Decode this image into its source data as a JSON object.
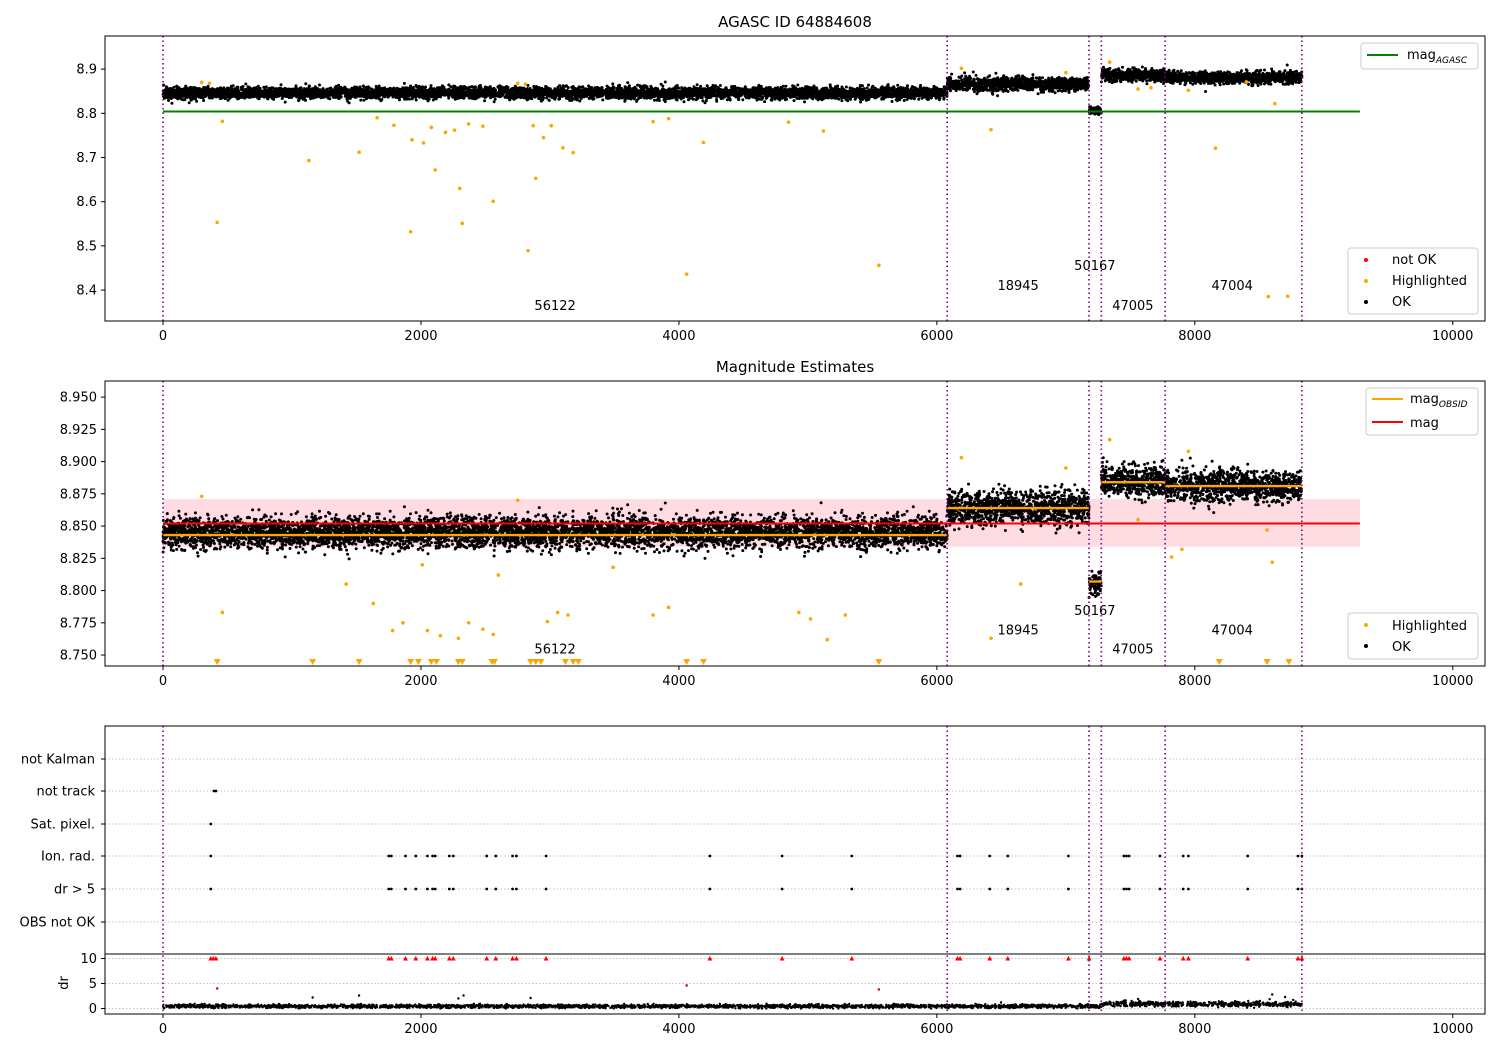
{
  "chart_data": [
    {
      "type": "scatter",
      "title": "AGASC ID 64884608",
      "xlim": [
        -450,
        10250
      ],
      "ylim": [
        8.33,
        8.975
      ],
      "x_ticks": [
        0,
        2000,
        4000,
        6000,
        8000,
        10000
      ],
      "y_ticks": [
        8.4,
        8.5,
        8.6,
        8.7,
        8.8,
        8.9
      ],
      "grid": false,
      "legend_upper": {
        "placement": "top-right",
        "entries": [
          {
            "label": "mag",
            "sub": "AGASC",
            "color": "#008000"
          }
        ]
      },
      "legend_lower": {
        "placement": "bottom-right",
        "entries": [
          {
            "label": "not OK",
            "color": "#ff0000"
          },
          {
            "label": "Highlighted",
            "color": "#ffa500"
          },
          {
            "label": "OK",
            "color": "#000000"
          }
        ]
      },
      "obsid_boundaries": [
        0,
        6080,
        7180,
        7275,
        7770,
        8830
      ],
      "obsid_labels": [
        {
          "text": "56122",
          "x": 3040,
          "y": 8.355
        },
        {
          "text": "18945",
          "x": 6630,
          "y": 8.4
        },
        {
          "text": "50167",
          "x": 7225,
          "y": 8.445
        },
        {
          "text": "47005",
          "x": 7520,
          "y": 8.355
        },
        {
          "text": "47004",
          "x": 8290,
          "y": 8.4
        }
      ],
      "mag_agasc": {
        "value": 8.804,
        "x": [
          0,
          9280
        ]
      },
      "ok_segments": [
        {
          "x": [
            0,
            6080
          ],
          "center": 8.846,
          "spread": 0.012
        },
        {
          "x": [
            6080,
            7180
          ],
          "center": 8.866,
          "spread": 0.014
        },
        {
          "x": [
            7180,
            7275
          ],
          "center": 8.806,
          "spread": 0.006
        },
        {
          "x": [
            7275,
            7770
          ],
          "center": 8.886,
          "spread": 0.012
        },
        {
          "x": [
            7770,
            8830
          ],
          "center": 8.881,
          "spread": 0.012
        }
      ],
      "highlighted_points": [
        [
          1130,
          8.693
        ],
        [
          1520,
          8.712
        ],
        [
          1660,
          8.79
        ],
        [
          1790,
          8.773
        ],
        [
          1930,
          8.74
        ],
        [
          2020,
          8.733
        ],
        [
          2080,
          8.768
        ],
        [
          2110,
          8.672
        ],
        [
          2190,
          8.757
        ],
        [
          2260,
          8.762
        ],
        [
          2300,
          8.63
        ],
        [
          2320,
          8.551
        ],
        [
          2370,
          8.776
        ],
        [
          2480,
          8.771
        ],
        [
          2560,
          8.601
        ],
        [
          2830,
          8.489
        ],
        [
          2870,
          8.772
        ],
        [
          2890,
          8.653
        ],
        [
          2950,
          8.745
        ],
        [
          3010,
          8.772
        ],
        [
          3100,
          8.722
        ],
        [
          3180,
          8.711
        ],
        [
          3800,
          8.781
        ],
        [
          3920,
          8.788
        ],
        [
          4060,
          8.436
        ],
        [
          4190,
          8.734
        ],
        [
          4850,
          8.78
        ],
        [
          5120,
          8.76
        ],
        [
          5550,
          8.456
        ],
        [
          6420,
          8.763
        ],
        [
          8160,
          8.721
        ],
        [
          8570,
          8.385
        ],
        [
          8720,
          8.386
        ],
        [
          420,
          8.553
        ],
        [
          1920,
          8.532
        ],
        [
          460,
          8.782
        ],
        [
          300,
          8.87
        ],
        [
          360,
          8.868
        ],
        [
          2750,
          8.868
        ],
        [
          2810,
          8.866
        ],
        [
          6190,
          8.902
        ],
        [
          7340,
          8.916
        ],
        [
          7560,
          8.855
        ],
        [
          7660,
          8.858
        ],
        [
          7950,
          8.852
        ],
        [
          8620,
          8.822
        ],
        [
          8400,
          8.871
        ],
        [
          7000,
          8.892
        ]
      ]
    },
    {
      "type": "scatter",
      "title": "Magnitude Estimates",
      "xlim": [
        -450,
        10250
      ],
      "ylim": [
        8.7415,
        8.9625
      ],
      "x_ticks": [
        0,
        2000,
        4000,
        6000,
        8000,
        10000
      ],
      "y_ticks": [
        "8.750",
        "8.775",
        "8.800",
        "8.825",
        "8.850",
        "8.875",
        "8.900",
        "8.925",
        "8.950"
      ],
      "grid": false,
      "legend_upper": {
        "placement": "top-right",
        "entries": [
          {
            "label": "mag",
            "sub": "OBSID",
            "color": "#ffa500"
          },
          {
            "label": "mag",
            "color": "#ff0000"
          }
        ]
      },
      "legend_lower": {
        "placement": "bottom-right",
        "entries": [
          {
            "label": "Highlighted",
            "color": "#ffa500"
          },
          {
            "label": "OK",
            "color": "#000000"
          }
        ]
      },
      "obsid_boundaries": [
        0,
        6080,
        7180,
        7275,
        7770,
        8830
      ],
      "obsid_labels": [
        {
          "text": "56122",
          "x": 3040,
          "y": 8.751
        },
        {
          "text": "18945",
          "x": 6630,
          "y": 8.766
        },
        {
          "text": "50167",
          "x": 7225,
          "y": 8.781
        },
        {
          "text": "47005",
          "x": 7520,
          "y": 8.751
        },
        {
          "text": "47004",
          "x": 8290,
          "y": 8.766
        }
      ],
      "mag": {
        "value": 8.852,
        "band": [
          8.834,
          8.871
        ],
        "x": [
          0,
          9280
        ]
      },
      "mag_obsid": [
        {
          "x": [
            0,
            6080
          ],
          "value": 8.843
        },
        {
          "x": [
            6080,
            7180
          ],
          "value": 8.864
        },
        {
          "x": [
            7180,
            7275
          ],
          "value": 8.807
        },
        {
          "x": [
            7275,
            7770
          ],
          "value": 8.884
        },
        {
          "x": [
            7770,
            8830
          ],
          "value": 8.881
        }
      ],
      "ok_segments": [
        {
          "x": [
            0,
            6080
          ],
          "center": 8.845,
          "spread": 0.011
        },
        {
          "x": [
            6080,
            7180
          ],
          "center": 8.864,
          "spread": 0.012
        },
        {
          "x": [
            7180,
            7275
          ],
          "center": 8.806,
          "spread": 0.008
        },
        {
          "x": [
            7275,
            7770
          ],
          "center": 8.885,
          "spread": 0.011
        },
        {
          "x": [
            7770,
            8830
          ],
          "center": 8.881,
          "spread": 0.011
        }
      ],
      "highlighted_points": [
        [
          1630,
          8.79
        ],
        [
          1780,
          8.769
        ],
        [
          1860,
          8.775
        ],
        [
          2050,
          8.769
        ],
        [
          2150,
          8.765
        ],
        [
          2290,
          8.763
        ],
        [
          2370,
          8.775
        ],
        [
          2480,
          8.77
        ],
        [
          2560,
          8.766
        ],
        [
          2980,
          8.776
        ],
        [
          3060,
          8.783
        ],
        [
          3140,
          8.781
        ],
        [
          3800,
          8.781
        ],
        [
          3920,
          8.787
        ],
        [
          4930,
          8.783
        ],
        [
          5020,
          8.778
        ],
        [
          5150,
          8.762
        ],
        [
          5290,
          8.781
        ],
        [
          6420,
          8.763
        ],
        [
          6650,
          8.805
        ],
        [
          1420,
          8.805
        ],
        [
          2010,
          8.82
        ],
        [
          2600,
          8.812
        ],
        [
          3490,
          8.818
        ],
        [
          460,
          8.783
        ],
        [
          7820,
          8.826
        ],
        [
          7900,
          8.832
        ],
        [
          8600,
          8.822
        ],
        [
          300,
          8.873
        ],
        [
          2750,
          8.87
        ],
        [
          6190,
          8.903
        ],
        [
          7340,
          8.917
        ],
        [
          7560,
          8.855
        ],
        [
          7950,
          8.908
        ],
        [
          7000,
          8.895
        ],
        [
          8560,
          8.847
        ]
      ],
      "below_limit_markers": [
        420,
        1160,
        1520,
        1920,
        1980,
        2080,
        2120,
        2290,
        2320,
        2550,
        2570,
        2850,
        2890,
        2930,
        3120,
        3180,
        3220,
        4060,
        4190,
        5550,
        8190,
        8560,
        8730
      ]
    },
    {
      "type": "scatter",
      "title": "",
      "xlim": [
        -450,
        10250
      ],
      "x_ticks": [
        0,
        2000,
        4000,
        6000,
        8000,
        10000
      ],
      "flag_rows": [
        "not Kalman",
        "not track",
        "Sat. pixel.",
        "Ion. rad.",
        "dr > 5",
        "OBS not OK"
      ],
      "flag_points": {
        "not track": [
          395,
          410
        ],
        "Sat. pixel.": [
          370
        ],
        "Ion. rad.": [
          370,
          1750,
          1770,
          1880,
          1960,
          2050,
          2090,
          2110,
          2220,
          2250,
          2510,
          2580,
          2710,
          2740,
          2970,
          4240,
          4800,
          5340,
          6160,
          6180,
          6410,
          6550,
          7020,
          7450,
          7470,
          7490,
          7730,
          7910,
          7950,
          8410,
          8800,
          8830
        ],
        "dr > 5": [
          370,
          1750,
          1770,
          1880,
          1960,
          2050,
          2090,
          2110,
          2220,
          2250,
          2510,
          2580,
          2710,
          2740,
          2970,
          4240,
          4800,
          5340,
          6160,
          6180,
          6410,
          6550,
          7020,
          7450,
          7470,
          7490,
          7730,
          7910,
          7950,
          8410,
          8800,
          8830
        ]
      },
      "dr_ylabel": "dr",
      "dr_yticks": [
        0,
        5,
        10
      ],
      "dr_ylim": [
        -0.5,
        10.5
      ],
      "dr_clipped": [
        370,
        390,
        410,
        1750,
        1770,
        1880,
        1960,
        2050,
        2090,
        2110,
        2220,
        2250,
        2510,
        2580,
        2710,
        2740,
        2970,
        4240,
        4800,
        5340,
        6160,
        6180,
        6410,
        6550,
        7020,
        7180,
        7450,
        7470,
        7490,
        7730,
        7910,
        7950,
        8410,
        8800,
        8830
      ],
      "dr_outliers": [
        [
          420,
          4.0
        ],
        [
          1160,
          2.2
        ],
        [
          1520,
          2.6
        ],
        [
          2290,
          2.0
        ],
        [
          2330,
          2.6
        ],
        [
          2850,
          2.1
        ],
        [
          4060,
          4.6
        ],
        [
          5550,
          3.8
        ],
        [
          8600,
          2.8
        ],
        [
          8700,
          2.3
        ],
        [
          7560,
          1.9
        ]
      ],
      "dr_baseline": [
        {
          "x": [
            0,
            7275
          ],
          "level": 0.45,
          "spread": 0.35
        },
        {
          "x": [
            7275,
            8830
          ],
          "level": 0.9,
          "spread": 0.5
        }
      ],
      "obsid_boundaries": [
        0,
        6080,
        7180,
        7275,
        7770,
        8830
      ]
    }
  ]
}
